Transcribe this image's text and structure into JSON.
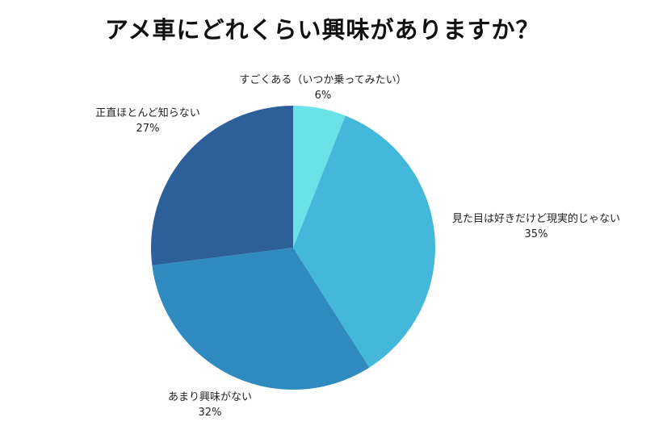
{
  "chart_data": {
    "type": "pie",
    "title": "アメ車にどれくらい興味がありますか？",
    "slices": [
      {
        "label": "すごくある（いつか乗ってみたい）",
        "value": 6,
        "value_label": "6%",
        "color": "#6AE3E8"
      },
      {
        "label": "見た目は好きだけど現実的じゃない",
        "value": 35,
        "value_label": "35%",
        "color": "#43B8DA"
      },
      {
        "label": "あまり興味がない",
        "value": 32,
        "value_label": "32%",
        "color": "#2F8BBF"
      },
      {
        "label": "正直ほとんど知らない",
        "value": 27,
        "value_label": "27%",
        "color": "#2D5F98"
      }
    ],
    "start_angle": "12 o'clock",
    "direction": "clockwise",
    "legend": "none"
  }
}
